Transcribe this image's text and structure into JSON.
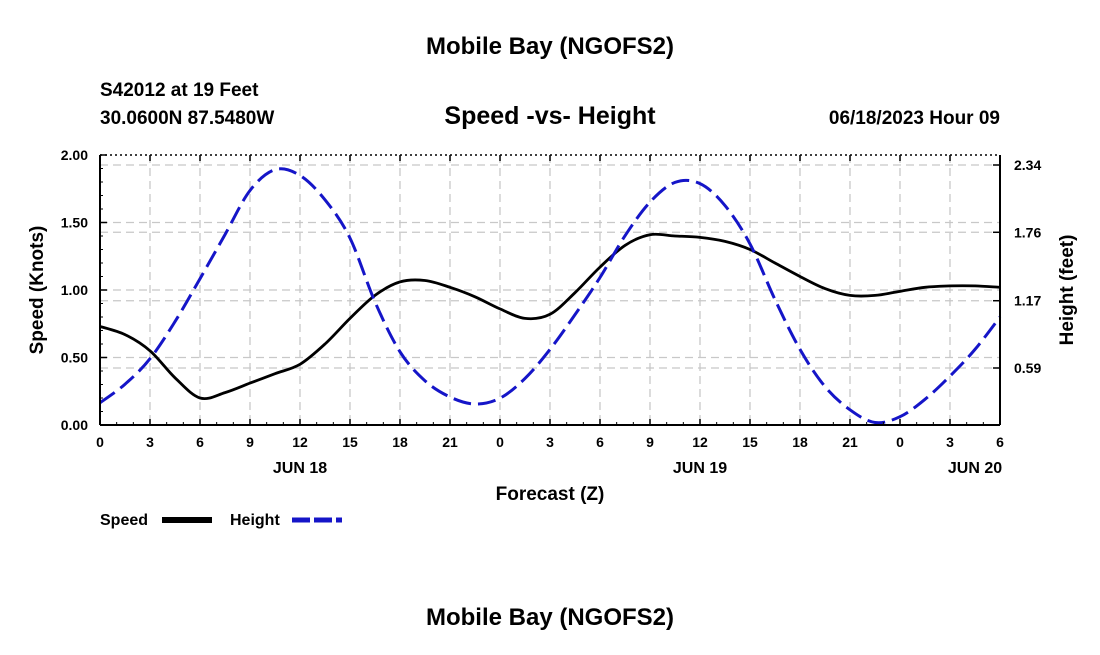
{
  "chart_data": {
    "type": "line",
    "title": "Mobile Bay (NGOFS2)",
    "subtitle": "Speed -vs- Height",
    "station": "S42012 at 19 Feet",
    "coords": "30.0600N  87.5480W",
    "timestamp": "06/18/2023 Hour 09",
    "footer_title": "Mobile Bay (NGOFS2)",
    "xlabel": "Forecast (Z)",
    "ylabel": "Speed (Knots)",
    "y2label": "Height (feet)",
    "x_ticks": [
      "0",
      "3",
      "6",
      "9",
      "12",
      "15",
      "18",
      "21",
      "0",
      "3",
      "6",
      "9",
      "12",
      "15",
      "18",
      "21",
      "0",
      "3",
      "6"
    ],
    "day_labels": [
      "JUN 18",
      "JUN 19",
      "JUN 20"
    ],
    "y_ticks": [
      "0.00",
      "0.50",
      "1.00",
      "1.50",
      "2.00"
    ],
    "y2_ticks": [
      "0.59",
      "1.17",
      "1.76",
      "2.34"
    ],
    "y_range": [
      0,
      2.0
    ],
    "grid": true,
    "legend_position": "bottom-left",
    "series": [
      {
        "name": "Speed",
        "color": "#000000",
        "style": "solid",
        "axis": "left",
        "x": [
          0,
          1.5,
          3,
          4.5,
          6,
          7.5,
          9,
          10.5,
          12,
          13.5,
          15,
          16.5,
          18,
          19.5,
          21,
          22.5,
          24,
          25.5,
          27,
          28.5,
          30,
          31.5,
          33,
          34.5,
          36,
          37.5,
          39,
          40.5,
          42,
          43.5,
          45,
          46.5,
          48,
          49.5,
          51,
          52.5,
          54
        ],
        "values": [
          0.73,
          0.67,
          0.55,
          0.35,
          0.2,
          0.24,
          0.31,
          0.38,
          0.45,
          0.6,
          0.79,
          0.96,
          1.06,
          1.07,
          1.02,
          0.95,
          0.86,
          0.79,
          0.82,
          0.98,
          1.17,
          1.33,
          1.41,
          1.4,
          1.39,
          1.36,
          1.3,
          1.2,
          1.1,
          1.01,
          0.96,
          0.96,
          0.99,
          1.02,
          1.03,
          1.03,
          1.02
        ]
      },
      {
        "name": "Height",
        "color": "#1515c8",
        "style": "dashed",
        "axis": "right",
        "x": [
          0,
          1.5,
          3,
          4.5,
          6,
          7.5,
          9,
          10.5,
          12,
          13.5,
          15,
          16.5,
          18,
          19.5,
          21,
          22.5,
          24,
          25.5,
          27,
          28.5,
          30,
          31.5,
          33,
          34.5,
          36,
          37.5,
          39,
          40.5,
          42,
          43.5,
          45,
          46.5,
          48,
          49.5,
          51,
          52.5,
          54
        ],
        "values": [
          0.29,
          0.45,
          0.67,
          0.99,
          1.36,
          1.74,
          2.12,
          2.3,
          2.25,
          2.04,
          1.71,
          1.16,
          0.73,
          0.48,
          0.34,
          0.28,
          0.33,
          0.5,
          0.75,
          1.05,
          1.37,
          1.73,
          2.02,
          2.19,
          2.18,
          1.99,
          1.66,
          1.18,
          0.75,
          0.43,
          0.23,
          0.12,
          0.17,
          0.32,
          0.52,
          0.75,
          1.03
        ]
      }
    ]
  }
}
